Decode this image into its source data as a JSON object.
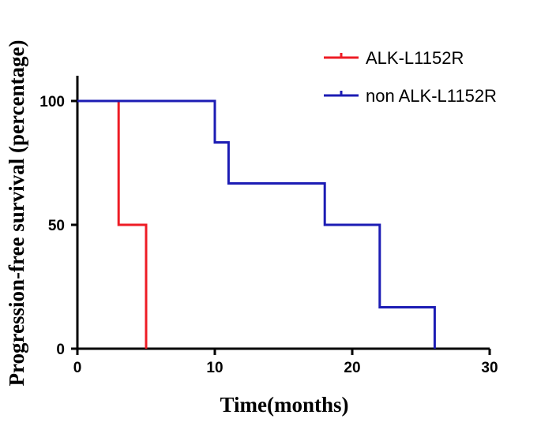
{
  "chart_data": {
    "type": "line",
    "step": true,
    "xlabel": "Time(months)",
    "ylabel": "Progression-free survival (percentage)",
    "xlim": [
      0,
      30
    ],
    "ylim": [
      0,
      100
    ],
    "xticks": [
      0,
      10,
      20,
      30
    ],
    "yticks": [
      0,
      50,
      100
    ],
    "grid": false,
    "legend_position": "top-right",
    "series": [
      {
        "name": "ALK-L1152R",
        "color": "#ee1c25",
        "x": [
          0,
          3,
          5
        ],
        "y": [
          100,
          50,
          0
        ]
      },
      {
        "name": "non ALK-L1152R",
        "color": "#1c1cb4",
        "x": [
          0,
          10,
          11,
          18,
          22,
          26
        ],
        "y": [
          100,
          83.3,
          66.7,
          50,
          16.7,
          0
        ]
      }
    ]
  }
}
